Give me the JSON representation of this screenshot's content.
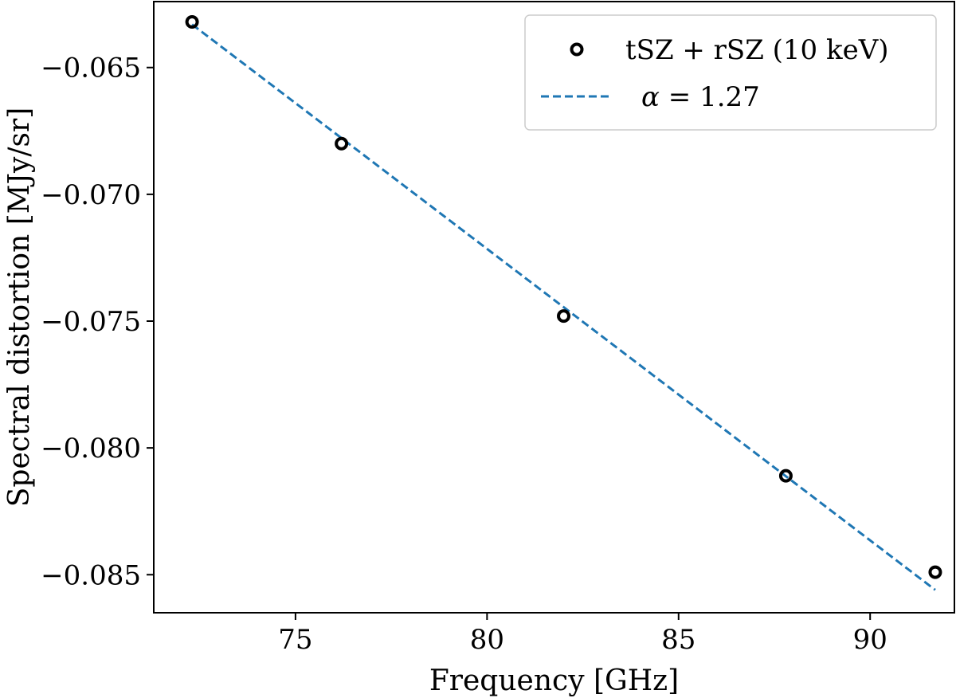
{
  "chart_data": {
    "type": "scatter",
    "xlabel": "Frequency [GHz]",
    "ylabel": "Spectral distortion [MJy/sr]",
    "xlim": [
      71.3,
      92.2
    ],
    "ylim": [
      -0.0865,
      -0.0624
    ],
    "xticks": [
      75,
      80,
      85,
      90
    ],
    "xtick_labels": [
      "75",
      "80",
      "85",
      "90"
    ],
    "yticks": [
      -0.065,
      -0.07,
      -0.075,
      -0.08,
      -0.085
    ],
    "ytick_labels": [
      "−0.065",
      "−0.070",
      "−0.075",
      "−0.080",
      "−0.085"
    ],
    "grid": false,
    "legend_position": "top-right",
    "series": [
      {
        "name": "tSZ + rSZ (10 keV)",
        "kind": "scatter",
        "marker": "open-circle",
        "color": "#000000",
        "x": [
          72.3,
          76.2,
          82.0,
          87.8,
          91.7
        ],
        "y": [
          -0.0632,
          -0.068,
          -0.0748,
          -0.0811,
          -0.0849
        ]
      },
      {
        "name_prefix": "α",
        "name_suffix": " = 1.27",
        "kind": "line",
        "style": "dashed",
        "color": "#1f77b4",
        "x": [
          72.3,
          91.7
        ],
        "y": [
          -0.0633,
          -0.0856
        ]
      }
    ]
  }
}
